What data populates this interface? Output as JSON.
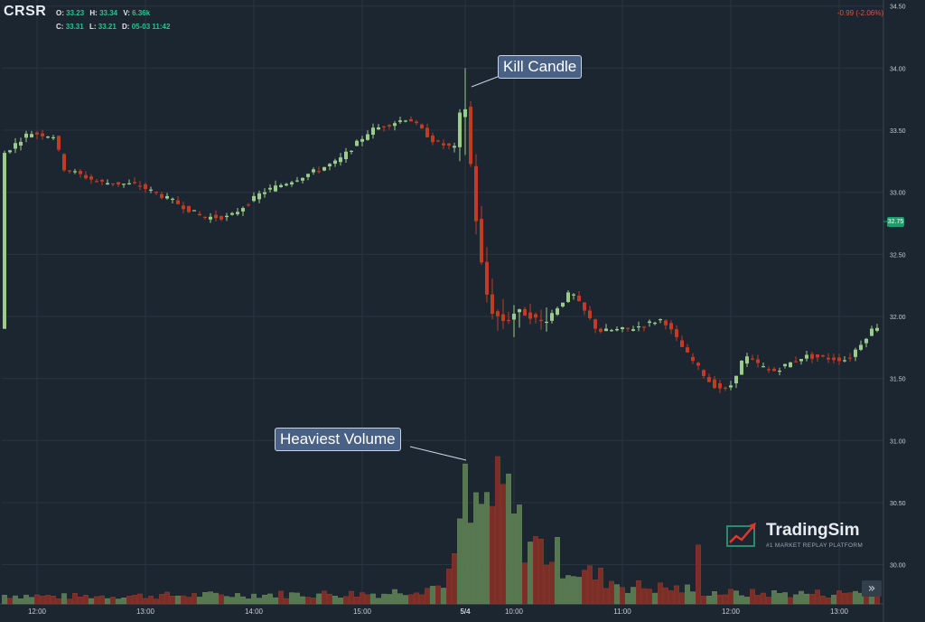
{
  "header": {
    "symbol": "CRSR",
    "open_label": "O:",
    "open": "33.23",
    "high_label": "H:",
    "high": "33.34",
    "volume_label": "V:",
    "volume": "6.36k",
    "close_label": "C:",
    "close": "33.31",
    "low_label": "L:",
    "low": "33.21",
    "date_label": "D:",
    "date": "05-03 11:42",
    "change": "-0.99 (-2.06%)",
    "last_price": "32.75"
  },
  "annotations": {
    "kill": "Kill Candle",
    "volume": "Heaviest Volume"
  },
  "logo": {
    "name": "TradingSim",
    "tagline": "#1 MARKET REPLAY PLATFORM"
  },
  "controls": {
    "scroll_icon": "»"
  },
  "colors": {
    "up": "#9ccc8a",
    "down": "#c23b22",
    "vol_up": "#56774f",
    "vol_down": "#7a2e26",
    "grid": "#283441",
    "bg": "#1b2631"
  },
  "chart_data": {
    "type": "candlestick",
    "y_ticks": [
      "34.50",
      "34.00",
      "33.50",
      "33.00",
      "32.50",
      "32.00",
      "31.50",
      "31.00",
      "30.50",
      "30.00"
    ],
    "y_tick_values": [
      34.5,
      34.0,
      33.5,
      33.0,
      32.5,
      32.0,
      31.5,
      31.0,
      30.5,
      30.0
    ],
    "ylim": [
      29.72,
      34.52
    ],
    "x_ticks": [
      "12:00",
      "13:00",
      "14:00",
      "15:00",
      "5/4",
      "10:00",
      "11:00",
      "12:00",
      "13:00"
    ],
    "x_tick_index": [
      6,
      26,
      46,
      66,
      85,
      94,
      114,
      134,
      154
    ],
    "price_path": [
      [
        0,
        33.3
      ],
      [
        5,
        33.48
      ],
      [
        10,
        33.45
      ],
      [
        11,
        33.2
      ],
      [
        18,
        33.08
      ],
      [
        25,
        33.06
      ],
      [
        32,
        32.92
      ],
      [
        37,
        32.8
      ],
      [
        42,
        32.8
      ],
      [
        48,
        33.0
      ],
      [
        55,
        33.12
      ],
      [
        62,
        33.25
      ],
      [
        68,
        33.5
      ],
      [
        75,
        33.6
      ],
      [
        80,
        33.4
      ],
      [
        84,
        33.35
      ],
      [
        85,
        33.9
      ],
      [
        87,
        33.0
      ],
      [
        88,
        32.55
      ],
      [
        90,
        32.05
      ],
      [
        93,
        31.95
      ],
      [
        95,
        32.05
      ],
      [
        100,
        31.95
      ],
      [
        105,
        32.2
      ],
      [
        110,
        31.88
      ],
      [
        116,
        31.9
      ],
      [
        122,
        31.98
      ],
      [
        126,
        31.72
      ],
      [
        131,
        31.45
      ],
      [
        134,
        31.4
      ],
      [
        137,
        31.68
      ],
      [
        142,
        31.55
      ],
      [
        148,
        31.68
      ],
      [
        156,
        31.65
      ],
      [
        161,
        31.92
      ]
    ],
    "volume_path": [
      [
        0,
        0.06
      ],
      [
        10,
        0.05
      ],
      [
        40,
        0.06
      ],
      [
        70,
        0.07
      ],
      [
        75,
        0.1
      ],
      [
        80,
        0.12
      ],
      [
        83,
        0.25
      ],
      [
        85,
        0.95
      ],
      [
        86,
        0.55
      ],
      [
        88,
        0.65
      ],
      [
        90,
        0.7
      ],
      [
        93,
        0.72
      ],
      [
        95,
        0.5
      ],
      [
        98,
        0.4
      ],
      [
        102,
        0.32
      ],
      [
        106,
        0.22
      ],
      [
        110,
        0.18
      ],
      [
        115,
        0.12
      ],
      [
        125,
        0.1
      ],
      [
        130,
        0.08
      ],
      [
        135,
        0.07
      ],
      [
        145,
        0.07
      ],
      [
        155,
        0.07
      ],
      [
        161,
        0.12
      ]
    ],
    "candle_count": 162
  }
}
